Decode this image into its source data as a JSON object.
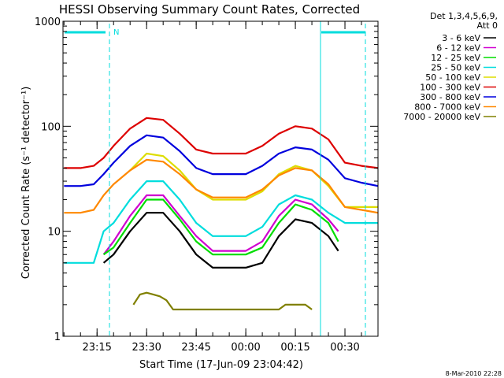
{
  "chart_data": {
    "type": "line",
    "title": "HESSI Observing Summary Count Rates, Corrected",
    "xlabel": "Start Time (17-Jun-09 23:04:42)",
    "ylabel": "Corrected Count Rate (s⁻¹ detector⁻¹)",
    "y_scale": "log",
    "ylim": [
      1,
      1000
    ],
    "y_ticks": [
      {
        "v": 1,
        "label": "1"
      },
      {
        "v": 10,
        "label": "10"
      },
      {
        "v": 100,
        "label": "100"
      },
      {
        "v": 1000,
        "label": "1000"
      }
    ],
    "x_ticks": [
      {
        "t": "23:15",
        "label": "23:15"
      },
      {
        "t": "23:30",
        "label": "23:30"
      },
      {
        "t": "23:45",
        "label": "23:45"
      },
      {
        "t": "00:00",
        "label": "00:00"
      },
      {
        "t": "00:15",
        "label": "00:15"
      },
      {
        "t": "00:30",
        "label": "00:30"
      }
    ],
    "x_range": [
      "23:04:42",
      "00:40:00"
    ],
    "legend_position": "right",
    "legend_header": [
      "Det 1,3,4,5,6,9,",
      "Att 0"
    ],
    "series": [
      {
        "name": "3 - 6 keV",
        "color": "#000000",
        "x": [
          "23:10",
          "23:14",
          "23:17",
          "23:20",
          "23:25",
          "23:30",
          "23:35",
          "23:40",
          "23:45",
          "23:50",
          "23:55",
          "00:00",
          "00:05",
          "00:10",
          "00:15",
          "00:20",
          "00:25",
          "00:28"
        ],
        "y": [
          null,
          null,
          5,
          6,
          10,
          15,
          15,
          10,
          6,
          4.5,
          4.5,
          4.5,
          5,
          9,
          13,
          12,
          9,
          6.5
        ]
      },
      {
        "name": "6 - 12 keV",
        "color": "#d000d0",
        "x": [
          "23:10",
          "23:14",
          "23:17",
          "23:20",
          "23:25",
          "23:30",
          "23:35",
          "23:40",
          "23:45",
          "23:50",
          "23:55",
          "00:00",
          "00:05",
          "00:10",
          "00:15",
          "00:20",
          "00:25",
          "00:28"
        ],
        "y": [
          null,
          null,
          6,
          8,
          14,
          22,
          22,
          14,
          9,
          6.5,
          6.5,
          6.5,
          8,
          14,
          20,
          18,
          13,
          10
        ]
      },
      {
        "name": "12 - 25 keV",
        "color": "#00dd00",
        "x": [
          "23:10",
          "23:14",
          "23:17",
          "23:20",
          "23:25",
          "23:30",
          "23:35",
          "23:40",
          "23:45",
          "23:50",
          "23:55",
          "00:00",
          "00:05",
          "00:10",
          "00:15",
          "00:20",
          "00:25",
          "00:28"
        ],
        "y": [
          null,
          null,
          6,
          7,
          12,
          20,
          20,
          13,
          8,
          6,
          6,
          6,
          7,
          12,
          18,
          16,
          12,
          8
        ]
      },
      {
        "name": "25 - 50 keV",
        "color": "#00dddd",
        "x": [
          "23:05",
          "23:10",
          "23:14",
          "23:17",
          "23:20",
          "23:25",
          "23:30",
          "23:35",
          "23:40",
          "23:45",
          "23:50",
          "23:55",
          "00:00",
          "00:05",
          "00:10",
          "00:15",
          "00:20",
          "00:25",
          "00:30",
          "00:35",
          "00:40"
        ],
        "y": [
          5,
          5,
          5,
          10,
          12,
          20,
          30,
          30,
          20,
          12,
          9,
          9,
          9,
          11,
          18,
          22,
          20,
          15,
          12,
          12,
          12
        ]
      },
      {
        "name": "50 - 100 keV",
        "color": "#dddd00",
        "x": [
          "23:05",
          "23:10",
          "23:14",
          "23:17",
          "23:20",
          "23:25",
          "23:30",
          "23:35",
          "23:40",
          "23:45",
          "23:50",
          "23:55",
          "00:00",
          "00:05",
          "00:10",
          "00:15",
          "00:20",
          "00:25",
          "00:30",
          "00:35",
          "00:40"
        ],
        "y": [
          null,
          null,
          null,
          null,
          null,
          38,
          55,
          52,
          38,
          25,
          20,
          20,
          20,
          24,
          35,
          42,
          38,
          27,
          17,
          17,
          17
        ]
      },
      {
        "name": "100 - 300 keV",
        "color": "#dd0000",
        "x": [
          "23:05",
          "23:10",
          "23:14",
          "23:17",
          "23:20",
          "23:25",
          "23:30",
          "23:35",
          "23:40",
          "23:45",
          "23:50",
          "23:55",
          "00:00",
          "00:05",
          "00:10",
          "00:15",
          "00:20",
          "00:25",
          "00:30",
          "00:35",
          "00:40"
        ],
        "y": [
          40,
          40,
          42,
          50,
          65,
          95,
          120,
          115,
          85,
          60,
          55,
          55,
          55,
          65,
          85,
          100,
          95,
          75,
          45,
          42,
          40
        ]
      },
      {
        "name": "300 - 800 keV",
        "color": "#0000dd",
        "x": [
          "23:05",
          "23:10",
          "23:14",
          "23:17",
          "23:20",
          "23:25",
          "23:30",
          "23:35",
          "23:40",
          "23:45",
          "23:50",
          "23:55",
          "00:00",
          "00:05",
          "00:10",
          "00:15",
          "00:20",
          "00:25",
          "00:30",
          "00:35",
          "00:40"
        ],
        "y": [
          27,
          27,
          28,
          35,
          45,
          65,
          82,
          78,
          58,
          40,
          35,
          35,
          35,
          42,
          55,
          63,
          60,
          48,
          32,
          29,
          27
        ]
      },
      {
        "name": "800 - 7000 keV",
        "color": "#ff8800",
        "x": [
          "23:05",
          "23:10",
          "23:14",
          "23:17",
          "23:20",
          "23:25",
          "23:30",
          "23:35",
          "23:40",
          "23:45",
          "23:50",
          "23:55",
          "00:00",
          "00:05",
          "00:10",
          "00:15",
          "00:20",
          "00:25",
          "00:30",
          "00:35",
          "00:40"
        ],
        "y": [
          15,
          15,
          16,
          22,
          28,
          38,
          48,
          46,
          35,
          25,
          21,
          21,
          21,
          25,
          34,
          40,
          38,
          28,
          17,
          16,
          15
        ]
      },
      {
        "name": "7000 - 20000 keV",
        "color": "#808000",
        "x": [
          "23:26",
          "23:28",
          "23:30",
          "23:32",
          "23:34",
          "23:36",
          "23:38",
          "00:10",
          "00:12",
          "00:14",
          "00:16",
          "00:18",
          "00:20"
        ],
        "y": [
          2,
          2.5,
          2.6,
          2.5,
          2.4,
          2.2,
          1.8,
          1.8,
          2,
          2,
          2,
          2,
          1.8
        ]
      }
    ],
    "annotations": [
      {
        "text": "N"
      }
    ],
    "date_stamp": "8-Mar-2010 22:28"
  }
}
